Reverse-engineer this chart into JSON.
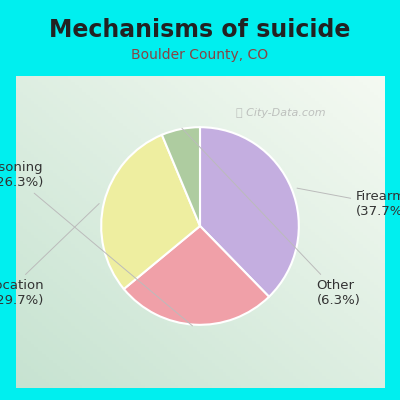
{
  "title": "Mechanisms of suicide",
  "subtitle": "Boulder County, CO",
  "slices": [
    {
      "label": "Firearm",
      "pct": 37.7,
      "color": "#C4AEE0"
    },
    {
      "label": "Poisoning",
      "pct": 26.3,
      "color": "#F0A0A8"
    },
    {
      "label": "Suffocation",
      "pct": 29.7,
      "color": "#EEEEA0"
    },
    {
      "label": "Other",
      "pct": 6.3,
      "color": "#AECCA0"
    }
  ],
  "bg_outer": "#00EFEF",
  "bg_inner_topleft": "#B8DEC8",
  "bg_inner_topright": "#DDEEDD",
  "label_color": "#333333",
  "title_color": "#222222",
  "subtitle_color": "#884444",
  "watermark": "City-Data.com",
  "label_fontsize": 9.5,
  "title_fontsize": 17,
  "subtitle_fontsize": 10,
  "startangle": 90
}
